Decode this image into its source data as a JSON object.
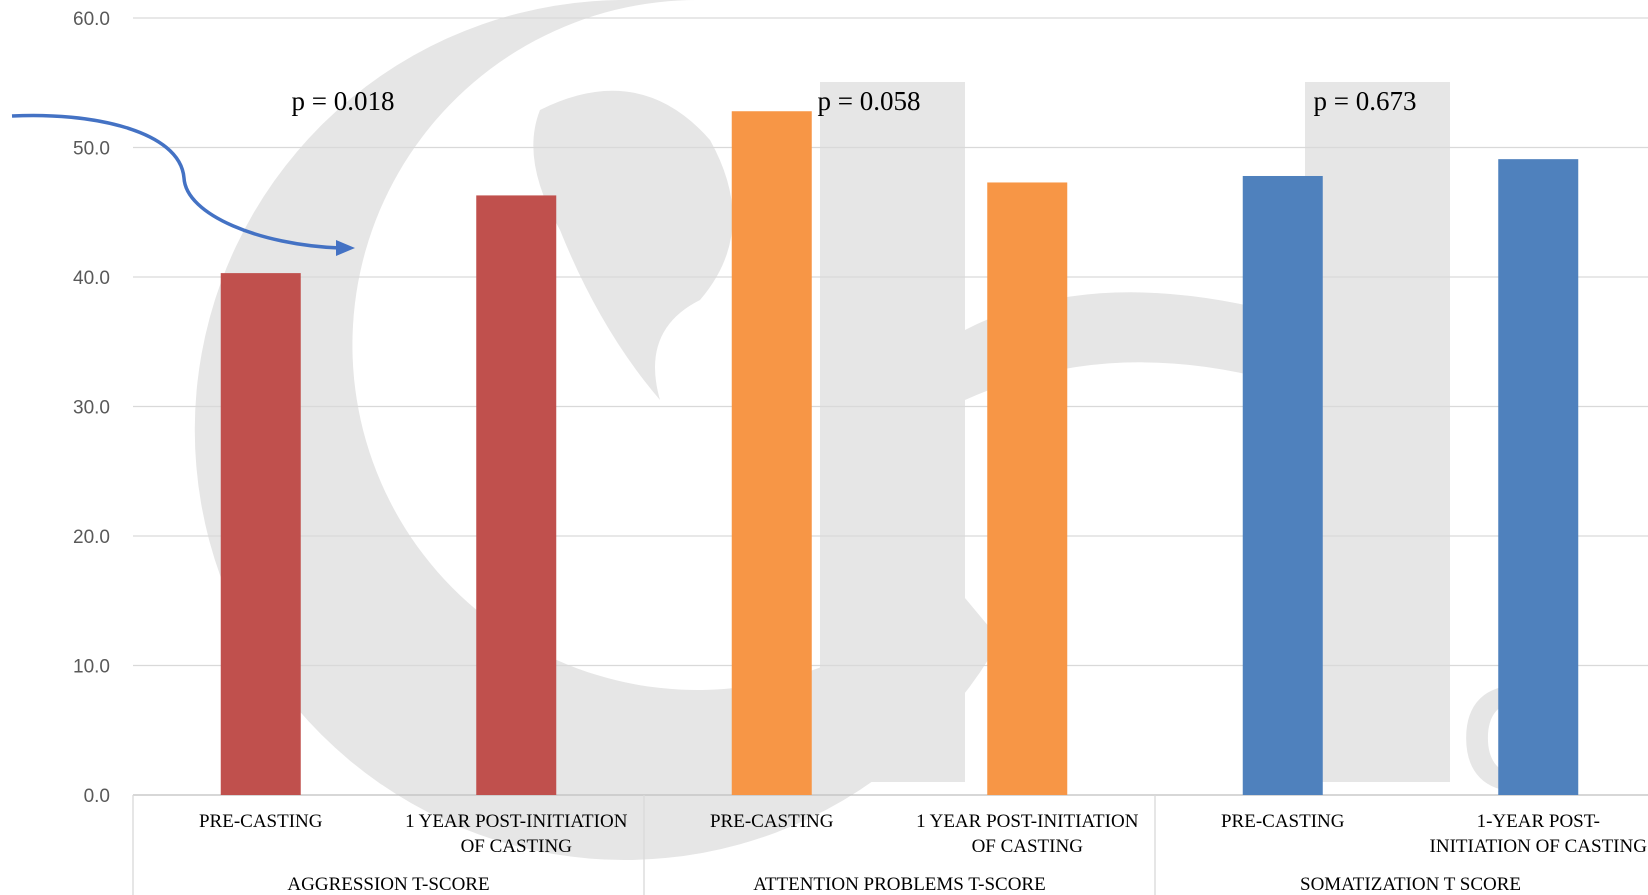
{
  "chart_data": {
    "type": "bar",
    "ylim": [
      0,
      60
    ],
    "yticks": [
      "0.0",
      "10.0",
      "20.0",
      "30.0",
      "40.0",
      "50.0",
      "60.0"
    ],
    "grid": true,
    "groups": [
      {
        "label": "AGGRESSION T-SCORE",
        "color": "#c0504d",
        "annotation": "p = 0.018",
        "bars": [
          {
            "label_lines": [
              "PRE-CASTING"
            ],
            "value": 40.3
          },
          {
            "label_lines": [
              "1 YEAR POST-INITIATION",
              "OF CASTING"
            ],
            "value": 46.3
          }
        ]
      },
      {
        "label": "ATTENTION PROBLEMS T-SCORE",
        "color": "#f79646",
        "annotation": "p = 0.058",
        "bars": [
          {
            "label_lines": [
              "PRE-CASTING"
            ],
            "value": 52.8
          },
          {
            "label_lines": [
              "1 YEAR POST-INITIATION",
              "OF CASTING"
            ],
            "value": 47.3
          }
        ]
      },
      {
        "label": "SOMATIZATION T SCORE",
        "color": "#4f81bd",
        "annotation": "p = 0.673",
        "bars": [
          {
            "label_lines": [
              "PRE-CASTING"
            ],
            "value": 47.8
          },
          {
            "label_lines": [
              "1-YEAR POST-",
              "INITIATION OF CASTING"
            ],
            "value": 49.1
          }
        ]
      }
    ],
    "arrow_color": "#4472c4"
  }
}
